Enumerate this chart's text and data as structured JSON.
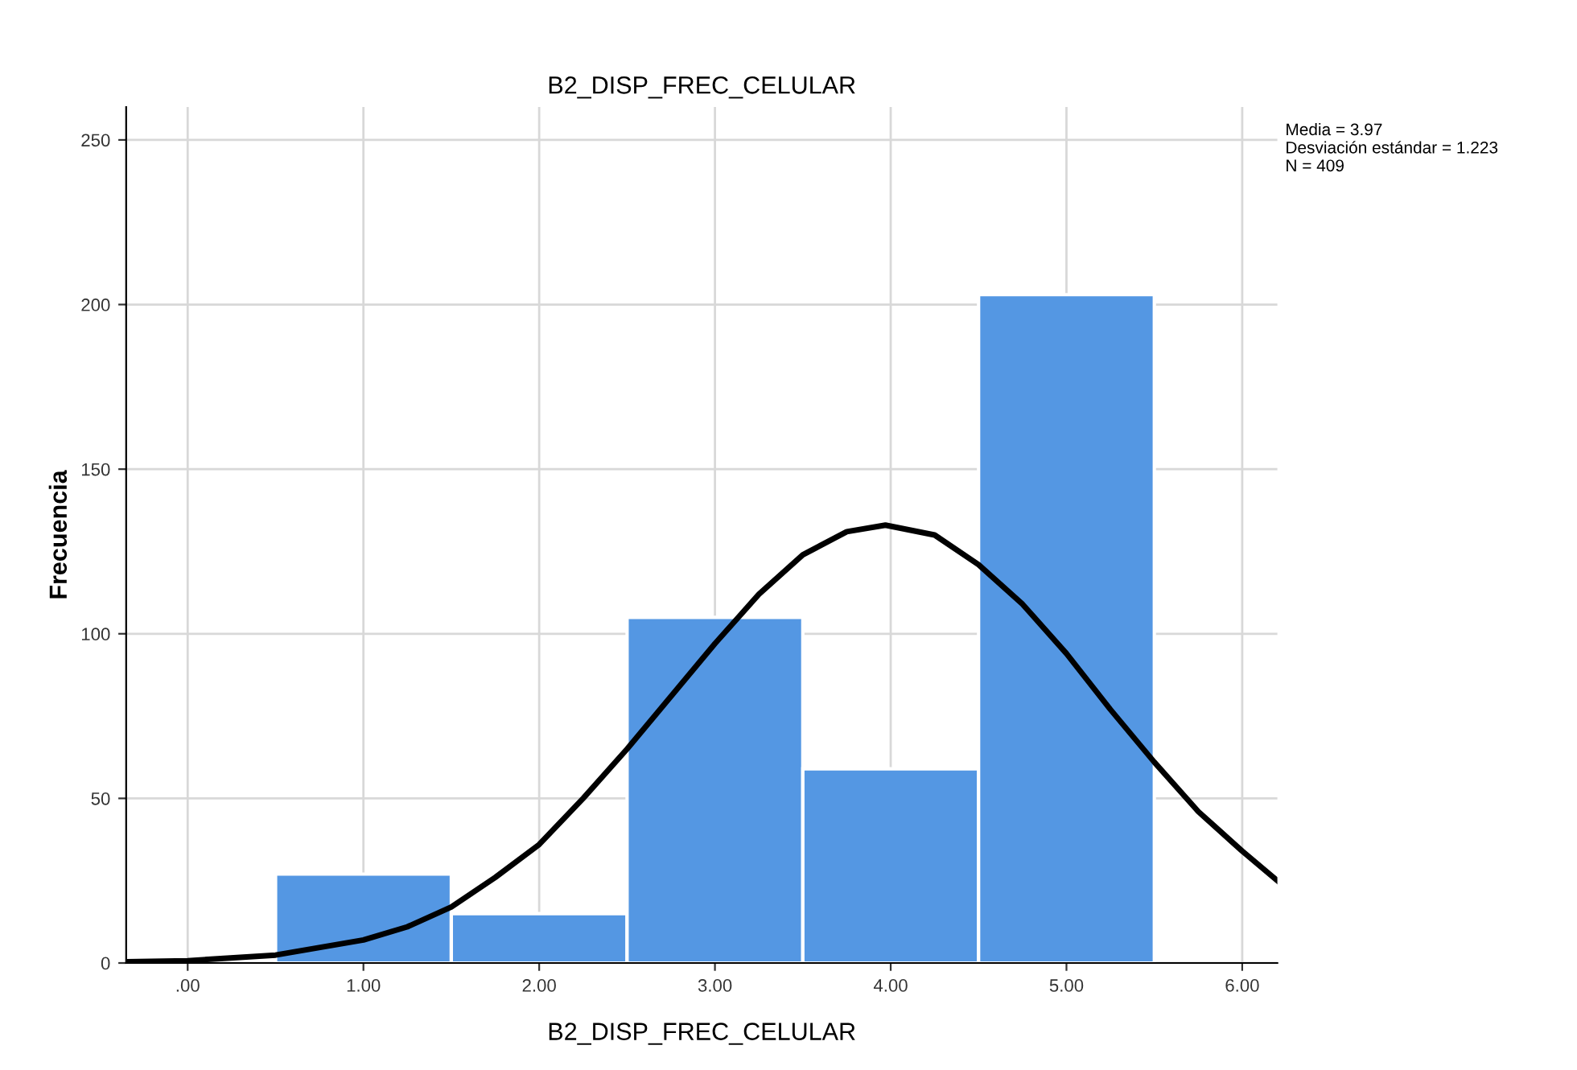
{
  "chart_data": {
    "type": "histogram",
    "title": "B2_DISP_FREC_CELULAR",
    "xlabel": "B2_DISP_FREC_CELULAR",
    "ylabel": "Frecuencia",
    "bins": [
      0.5,
      1.5,
      2.5,
      3.5,
      4.5,
      5.5
    ],
    "values": [
      27,
      15,
      105,
      59,
      203
    ],
    "color": "#5497e3",
    "series": [
      {
        "type": "line",
        "color": "#000000",
        "x": [
          -0.35,
          0,
          0.5,
          1,
          1.25,
          1.5,
          1.75,
          2,
          2.25,
          2.5,
          2.75,
          3,
          3.25,
          3.5,
          3.75,
          3.97,
          4.25,
          4.5,
          4.75,
          5,
          5.25,
          5.5,
          5.75,
          6,
          6.2
        ],
        "values": [
          0.4,
          0.7,
          2.4,
          7,
          11,
          17,
          26,
          36,
          50,
          65,
          81,
          97,
          112,
          124,
          131,
          133,
          130,
          121,
          109,
          94,
          77,
          61,
          46,
          34,
          25
        ]
      }
    ],
    "xlim": [
      -0.35,
      6.2
    ],
    "xticks": [
      {
        "value": 0,
        "label": ".00"
      },
      {
        "value": 1,
        "label": "1.00"
      },
      {
        "value": 2,
        "label": "2.00"
      },
      {
        "value": 3,
        "label": "3.00"
      },
      {
        "value": 4,
        "label": "4.00"
      },
      {
        "value": 5,
        "label": "5.00"
      },
      {
        "value": 6,
        "label": "6.00"
      }
    ],
    "ylim": [
      0,
      260
    ],
    "yticks": [
      0,
      50,
      100,
      150,
      200,
      250
    ],
    "grid": true,
    "line_style": "solid",
    "annotations": [
      "Media = 3.97\nDesviación estándar = 1.223\nN = 409"
    ]
  }
}
